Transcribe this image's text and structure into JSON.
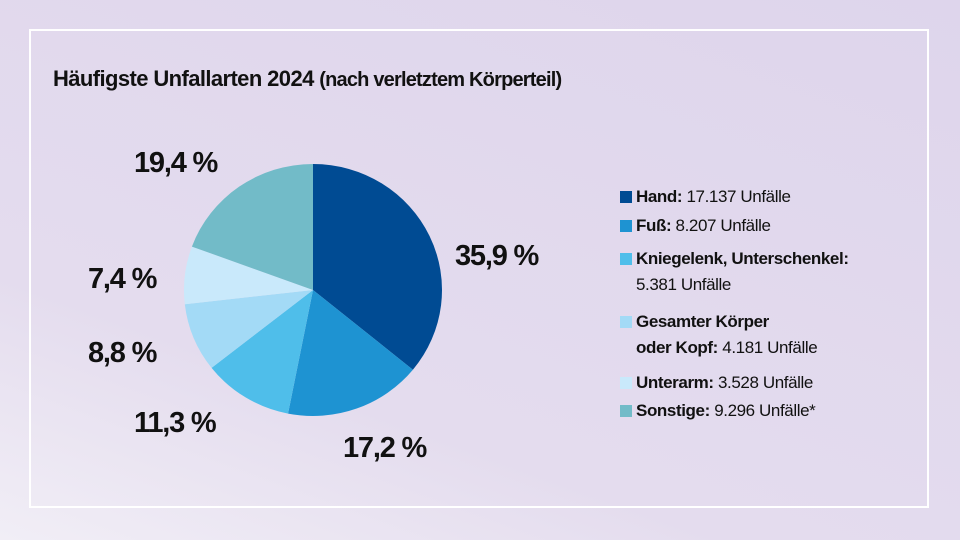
{
  "chart_data": {
    "type": "pie",
    "title": "Häufigste Unfallarten 2024",
    "subtitle": "(nach verletztem Körperteil)",
    "slices": [
      {
        "name": "Hand",
        "value": 35.9,
        "label": "35,9 %",
        "count": "17.137 Unfälle",
        "color": "#004B93"
      },
      {
        "name": "Fuß",
        "value": 17.2,
        "label": "17,2 %",
        "count": "8.207 Unfälle",
        "color": "#1E93D2"
      },
      {
        "name": "Kniegelenk, Unterschenkel",
        "value": 11.3,
        "label": "11,3 %",
        "count": "5.381 Unfälle",
        "color": "#4FBEEA"
      },
      {
        "name": "Gesamter Körper oder Kopf",
        "name_line1": "Gesamter Körper",
        "name_line2": "oder Kopf",
        "value": 8.8,
        "label": "8,8 %",
        "count": "4.181 Unfälle",
        "color": "#A3DAF6"
      },
      {
        "name": "Unterarm",
        "value": 7.4,
        "label": "7,4 %",
        "count": "3.528 Unfälle",
        "color": "#C9E9FB"
      },
      {
        "name": "Sonstige",
        "value": 19.4,
        "label": "19,4 %",
        "count": "9.296 Unfälle*",
        "color": "#72BBC8"
      }
    ],
    "legend_position": "right"
  }
}
